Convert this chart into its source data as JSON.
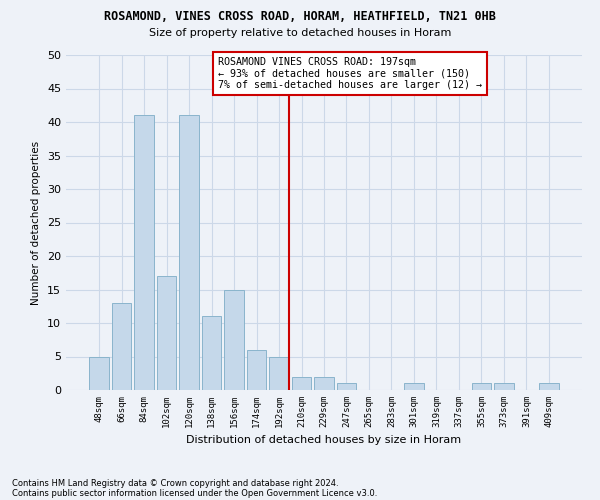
{
  "title": "ROSAMOND, VINES CROSS ROAD, HORAM, HEATHFIELD, TN21 0HB",
  "subtitle": "Size of property relative to detached houses in Horam",
  "xlabel": "Distribution of detached houses by size in Horam",
  "ylabel": "Number of detached properties",
  "categories": [
    "48sqm",
    "66sqm",
    "84sqm",
    "102sqm",
    "120sqm",
    "138sqm",
    "156sqm",
    "174sqm",
    "192sqm",
    "210sqm",
    "229sqm",
    "247sqm",
    "265sqm",
    "283sqm",
    "301sqm",
    "319sqm",
    "337sqm",
    "355sqm",
    "373sqm",
    "391sqm",
    "409sqm"
  ],
  "values": [
    5,
    13,
    41,
    17,
    41,
    11,
    15,
    6,
    5,
    2,
    2,
    1,
    0,
    0,
    1,
    0,
    0,
    1,
    1,
    0,
    1
  ],
  "bar_color": "#c5d8ea",
  "bar_edge_color": "#8ab4cc",
  "vline_color": "#cc0000",
  "annotation_text": "ROSAMOND VINES CROSS ROAD: 197sqm\n← 93% of detached houses are smaller (150)\n7% of semi-detached houses are larger (12) →",
  "annotation_box_color": "#cc0000",
  "ylim": [
    0,
    50
  ],
  "yticks": [
    0,
    5,
    10,
    15,
    20,
    25,
    30,
    35,
    40,
    45,
    50
  ],
  "grid_color": "#ccd8e8",
  "footer_line1": "Contains HM Land Registry data © Crown copyright and database right 2024.",
  "footer_line2": "Contains public sector information licensed under the Open Government Licence v3.0.",
  "background_color": "#eef2f8"
}
